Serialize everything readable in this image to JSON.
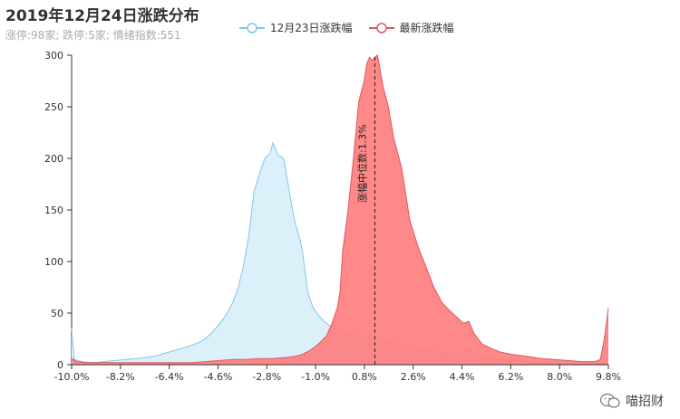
{
  "title": "2019年12月24日涨跌分布",
  "subtitle": "涨停:98家; 跌停:5家; 情绪指数:551",
  "watermark_text": "喵招财",
  "watermark_icon": "wechat-icon",
  "chart_data": {
    "type": "area",
    "x_tick_labels": [
      "-10.0%",
      "-8.2%",
      "-6.4%",
      "-4.6%",
      "-2.8%",
      "-1.0%",
      "0.8%",
      "2.6%",
      "4.4%",
      "6.2%",
      "8.0%",
      "9.8%"
    ],
    "xlim": [
      -10.0,
      10.0
    ],
    "ylim": [
      0,
      300
    ],
    "y_ticks": [
      0,
      50,
      100,
      150,
      200,
      250,
      300
    ],
    "grid": false,
    "legend_position": "top-center",
    "markline": {
      "x": 1.3,
      "label": "涨幅中位数:1.3%"
    },
    "series": [
      {
        "name": "12月23日涨跌幅",
        "color": "#7ec8e8",
        "fill": "#dcf0fa",
        "points": [
          [
            -10.0,
            35
          ],
          [
            -9.9,
            5
          ],
          [
            -9.6,
            3
          ],
          [
            -9.2,
            2
          ],
          [
            -8.8,
            3
          ],
          [
            -8.4,
            4
          ],
          [
            -8.0,
            5
          ],
          [
            -7.6,
            6
          ],
          [
            -7.2,
            7
          ],
          [
            -6.8,
            9
          ],
          [
            -6.4,
            12
          ],
          [
            -6.0,
            15
          ],
          [
            -5.6,
            18
          ],
          [
            -5.2,
            22
          ],
          [
            -4.9,
            28
          ],
          [
            -4.6,
            36
          ],
          [
            -4.3,
            46
          ],
          [
            -4.0,
            60
          ],
          [
            -3.8,
            74
          ],
          [
            -3.6,
            95
          ],
          [
            -3.4,
            125
          ],
          [
            -3.2,
            168
          ],
          [
            -3.0,
            185
          ],
          [
            -2.8,
            200
          ],
          [
            -2.6,
            205
          ],
          [
            -2.5,
            215
          ],
          [
            -2.3,
            203
          ],
          [
            -2.1,
            200
          ],
          [
            -1.9,
            170
          ],
          [
            -1.7,
            140
          ],
          [
            -1.5,
            122
          ],
          [
            -1.4,
            110
          ],
          [
            -1.2,
            70
          ],
          [
            -1.0,
            55
          ],
          [
            -0.8,
            48
          ],
          [
            -0.6,
            42
          ],
          [
            -0.4,
            38
          ],
          [
            -0.2,
            35
          ],
          [
            0.0,
            33
          ],
          [
            0.3,
            30
          ],
          [
            0.6,
            28
          ],
          [
            0.9,
            26
          ],
          [
            1.2,
            25
          ],
          [
            1.5,
            24
          ],
          [
            1.8,
            22
          ],
          [
            2.1,
            20
          ],
          [
            2.4,
            18
          ],
          [
            2.7,
            17
          ],
          [
            3.0,
            15
          ],
          [
            3.3,
            13
          ],
          [
            3.6,
            12
          ],
          [
            4.0,
            11
          ],
          [
            4.3,
            10
          ],
          [
            4.6,
            12
          ],
          [
            4.8,
            16
          ],
          [
            5.0,
            10
          ],
          [
            5.3,
            7
          ],
          [
            5.7,
            5
          ],
          [
            6.2,
            4
          ],
          [
            7.0,
            3
          ],
          [
            8.0,
            2
          ],
          [
            9.0,
            1
          ],
          [
            9.8,
            1
          ],
          [
            10.0,
            1
          ]
        ]
      },
      {
        "name": "最新涨跌幅",
        "color": "#e05563",
        "fill": "#ff7b7b",
        "points": [
          [
            -10.0,
            6
          ],
          [
            -9.8,
            3
          ],
          [
            -9.5,
            2
          ],
          [
            -9.0,
            2
          ],
          [
            -8.5,
            2
          ],
          [
            -8.0,
            2
          ],
          [
            -7.5,
            2
          ],
          [
            -7.0,
            2
          ],
          [
            -6.5,
            2
          ],
          [
            -6.0,
            2
          ],
          [
            -5.5,
            2
          ],
          [
            -5.0,
            3
          ],
          [
            -4.5,
            4
          ],
          [
            -4.0,
            5
          ],
          [
            -3.5,
            5
          ],
          [
            -3.0,
            6
          ],
          [
            -2.5,
            6
          ],
          [
            -2.0,
            7
          ],
          [
            -1.7,
            8
          ],
          [
            -1.4,
            10
          ],
          [
            -1.1,
            14
          ],
          [
            -0.8,
            20
          ],
          [
            -0.5,
            28
          ],
          [
            -0.3,
            40
          ],
          [
            -0.1,
            55
          ],
          [
            0.0,
            70
          ],
          [
            0.1,
            110
          ],
          [
            0.3,
            150
          ],
          [
            0.5,
            200
          ],
          [
            0.7,
            255
          ],
          [
            0.9,
            275
          ],
          [
            1.0,
            292
          ],
          [
            1.1,
            298
          ],
          [
            1.2,
            295
          ],
          [
            1.3,
            298
          ],
          [
            1.4,
            300
          ],
          [
            1.5,
            285
          ],
          [
            1.6,
            270
          ],
          [
            1.8,
            250
          ],
          [
            2.0,
            220
          ],
          [
            2.3,
            190
          ],
          [
            2.6,
            140
          ],
          [
            2.9,
            115
          ],
          [
            3.2,
            95
          ],
          [
            3.5,
            75
          ],
          [
            3.8,
            60
          ],
          [
            4.1,
            52
          ],
          [
            4.4,
            45
          ],
          [
            4.6,
            40
          ],
          [
            4.8,
            42
          ],
          [
            5.0,
            30
          ],
          [
            5.3,
            20
          ],
          [
            5.7,
            15
          ],
          [
            6.0,
            12
          ],
          [
            6.4,
            10
          ],
          [
            7.0,
            8
          ],
          [
            7.5,
            6
          ],
          [
            8.0,
            5
          ],
          [
            8.5,
            4
          ],
          [
            9.0,
            3
          ],
          [
            9.5,
            3
          ],
          [
            9.7,
            5
          ],
          [
            9.85,
            25
          ],
          [
            10.0,
            55
          ]
        ]
      }
    ]
  }
}
